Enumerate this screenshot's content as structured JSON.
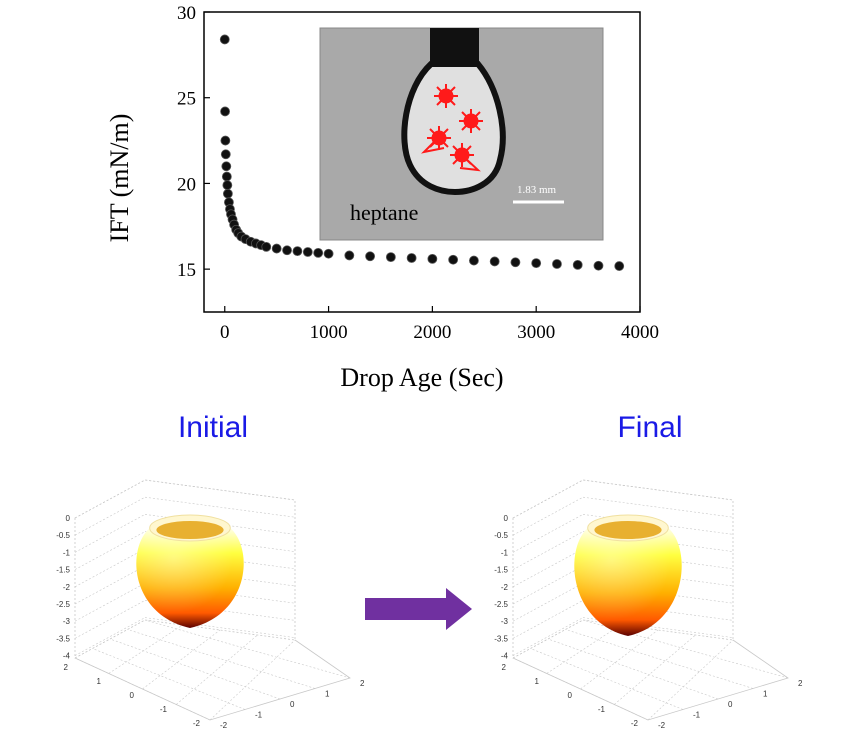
{
  "chart_data": {
    "type": "scatter",
    "title": "",
    "xlabel": "Drop Age (Sec)",
    "ylabel": "IFT (mN/m)",
    "xlim": [
      -200,
      4000
    ],
    "ylim": [
      12.5,
      30
    ],
    "xticks": [
      0,
      1000,
      2000,
      3000,
      4000
    ],
    "yticks": [
      15,
      20,
      25,
      30
    ],
    "grid": false,
    "legend": "none",
    "marker_color": "#111111",
    "series": [
      {
        "x": [
          0,
          3,
          6,
          10,
          15,
          20,
          25,
          30,
          40,
          50,
          60,
          75,
          90,
          110,
          130,
          160,
          200,
          250,
          300,
          350,
          400,
          500,
          600,
          700,
          800,
          900,
          1000,
          1200,
          1400,
          1600,
          1800,
          2000,
          2200,
          2400,
          2600,
          2800,
          3000,
          3200,
          3400,
          3600,
          3800
        ],
        "y": [
          28.4,
          24.2,
          22.5,
          21.7,
          21.0,
          20.4,
          19.9,
          19.4,
          18.9,
          18.5,
          18.2,
          17.9,
          17.6,
          17.3,
          17.1,
          16.9,
          16.75,
          16.6,
          16.5,
          16.4,
          16.3,
          16.2,
          16.1,
          16.05,
          16.0,
          15.95,
          15.9,
          15.8,
          15.75,
          15.7,
          15.65,
          15.6,
          15.55,
          15.5,
          15.45,
          15.4,
          15.35,
          15.3,
          15.25,
          15.2,
          15.18
        ]
      }
    ],
    "inset": {
      "label": "heptane",
      "scale_label": "1.83 mm"
    }
  },
  "panels": {
    "initial_title": "Initial",
    "final_title": "Final",
    "title_color": "#1a1ae6",
    "arrow_color": "#7030a0",
    "z_ticks": [
      "0",
      "-0.5",
      "-1",
      "-1.5",
      "-2",
      "-2.5",
      "-3",
      "-3.5",
      "-4"
    ],
    "xy_ticks_left": [
      "2",
      "1",
      "0",
      "-1",
      "-2"
    ],
    "xy_ticks_right": [
      "-2",
      "-1",
      "0",
      "1",
      "2"
    ]
  }
}
